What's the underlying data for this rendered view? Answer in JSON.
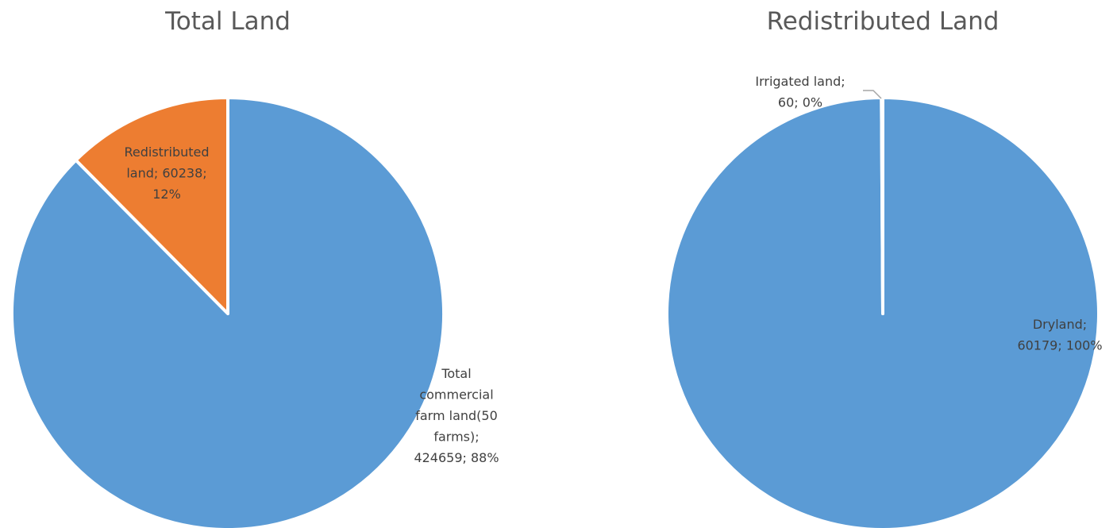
{
  "chart_data": [
    {
      "type": "pie",
      "title": "Total Land",
      "slices": [
        {
          "name": "Total commercial farm land(50 farms)",
          "value": 424659,
          "percent": "88%",
          "color": "#5B9BD5",
          "label_lines": [
            "Total",
            "commercial",
            "farm land(50",
            "farms);",
            "424659; 88%"
          ]
        },
        {
          "name": "Redistributed land",
          "value": 60238,
          "percent": "12%",
          "color": "#ED7D31",
          "label_lines": [
            "Redistributed",
            "land; 60238;",
            "12%"
          ]
        }
      ],
      "start_angle": "12 o'clock",
      "direction": "clockwise",
      "legend": "none"
    },
    {
      "type": "pie",
      "title": "Redistributed Land",
      "slices": [
        {
          "name": "Dryland",
          "value": 60179,
          "percent": "100%",
          "color": "#5B9BD5",
          "label_lines": [
            "Dryland;",
            "60179; 100%"
          ]
        },
        {
          "name": "Irrigated land",
          "value": 60,
          "percent": "0%",
          "color": "#5B9BD5",
          "label_lines": [
            "Irrigated land;",
            "60; 0%"
          ]
        }
      ],
      "start_angle": "12 o'clock",
      "direction": "clockwise",
      "legend": "none"
    }
  ]
}
